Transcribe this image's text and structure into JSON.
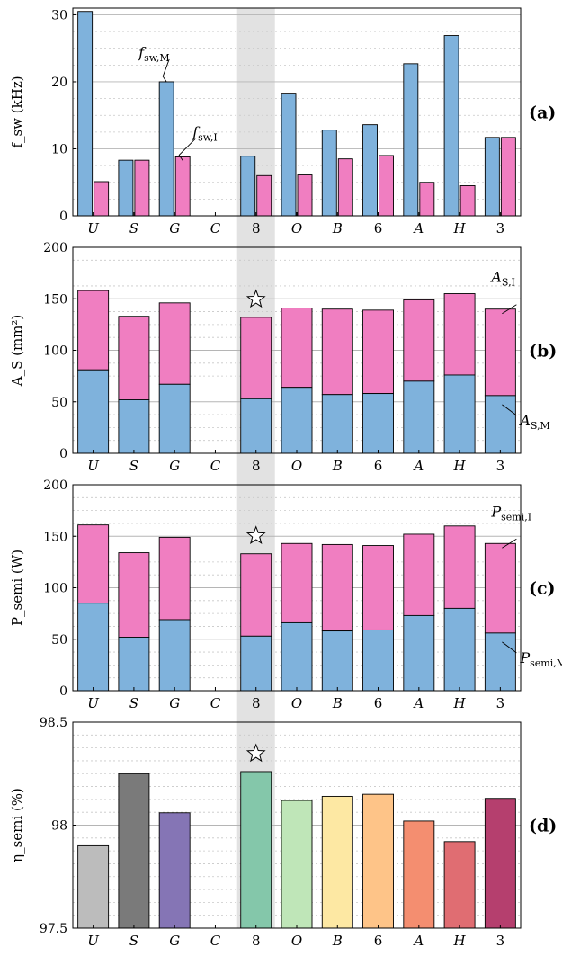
{
  "figure": {
    "categories": [
      "U",
      "S",
      "G",
      "C",
      "8",
      "O",
      "B",
      "6",
      "A",
      "H",
      "3"
    ],
    "highlight_category": "8",
    "colors": {
      "M": "#7fb2dc",
      "I": "#f07ec1",
      "highlight_band": "#cfcfcf",
      "grid_major": "#b5b5b5",
      "grid_minor": "#c8c8c8"
    }
  },
  "chart_data": [
    {
      "id": "a",
      "type": "bar",
      "grouping": "grouped",
      "panel_label": "(a)",
      "ylabel": "f_sw (kHz)",
      "ylim": [
        0,
        31
      ],
      "yticks": [
        0,
        10,
        20,
        30
      ],
      "minor_step": 2.5,
      "categories": [
        "U",
        "S",
        "G",
        "C",
        "8",
        "O",
        "B",
        "6",
        "A",
        "H",
        "3"
      ],
      "series": [
        {
          "key": "M",
          "name": "f_sw,M",
          "values": [
            30.5,
            8.3,
            20.0,
            null,
            8.9,
            18.3,
            12.8,
            13.6,
            22.7,
            26.9,
            11.7
          ]
        },
        {
          "key": "I",
          "name": "f_sw,I",
          "values": [
            5.1,
            8.3,
            8.8,
            null,
            6.0,
            6.1,
            8.5,
            9.0,
            5.0,
            4.5,
            11.7
          ]
        }
      ],
      "annotations": [
        {
          "base": "f",
          "sub": "sw,M",
          "series": "M",
          "category": "G"
        },
        {
          "base": "f",
          "sub": "sw,I",
          "series": "I",
          "category": "G"
        }
      ]
    },
    {
      "id": "b",
      "type": "bar",
      "grouping": "stacked",
      "panel_label": "(b)",
      "ylabel": "A_S (mm²)",
      "ylim": [
        0,
        200
      ],
      "yticks": [
        0,
        50,
        100,
        150,
        200
      ],
      "minor_step": 12.5,
      "categories": [
        "U",
        "S",
        "G",
        "C",
        "8",
        "O",
        "B",
        "6",
        "A",
        "H",
        "3"
      ],
      "series": [
        {
          "key": "M",
          "name": "A_S,M",
          "values": [
            81,
            52,
            67,
            null,
            53,
            64,
            57,
            58,
            70,
            76,
            56
          ]
        },
        {
          "key": "I",
          "name": "A_S,I",
          "values": [
            77,
            81,
            79,
            null,
            79,
            77,
            83,
            81,
            79,
            79,
            84
          ]
        }
      ],
      "star_category": "8",
      "annotations": [
        {
          "base": "A",
          "sub": "S,I",
          "series": "I",
          "category": "3"
        },
        {
          "base": "A",
          "sub": "S,M",
          "series": "M",
          "category": "3"
        }
      ]
    },
    {
      "id": "c",
      "type": "bar",
      "grouping": "stacked",
      "panel_label": "(c)",
      "ylabel": "P_semi (W)",
      "ylim": [
        0,
        200
      ],
      "yticks": [
        0,
        50,
        100,
        150,
        200
      ],
      "minor_step": 12.5,
      "categories": [
        "U",
        "S",
        "G",
        "C",
        "8",
        "O",
        "B",
        "6",
        "A",
        "H",
        "3"
      ],
      "series": [
        {
          "key": "M",
          "name": "P_semi,M",
          "values": [
            85,
            52,
            69,
            null,
            53,
            66,
            58,
            59,
            73,
            80,
            56
          ]
        },
        {
          "key": "I",
          "name": "P_semi,I",
          "values": [
            76,
            82,
            80,
            null,
            80,
            77,
            84,
            82,
            79,
            80,
            87
          ]
        }
      ],
      "star_category": "8",
      "annotations": [
        {
          "base": "P",
          "sub": "semi,I",
          "series": "I",
          "category": "3"
        },
        {
          "base": "P",
          "sub": "semi,M",
          "series": "M",
          "category": "3"
        }
      ]
    },
    {
      "id": "d",
      "type": "bar",
      "grouping": "single",
      "panel_label": "(d)",
      "ylabel": "η_semi (%)",
      "ylim": [
        97.5,
        98.5
      ],
      "yticks": [
        97.5,
        98,
        98.5
      ],
      "ytick_labels": [
        "97.5",
        "98",
        "98.5"
      ],
      "minor_step": 0.0625,
      "categories": [
        "U",
        "S",
        "G",
        "C",
        "8",
        "O",
        "B",
        "6",
        "A",
        "H",
        "3"
      ],
      "values": [
        97.9,
        98.25,
        98.06,
        null,
        98.26,
        98.12,
        98.14,
        98.15,
        98.02,
        97.92,
        98.13
      ],
      "bar_colors": [
        "#bcbcbc",
        "#7a7a7a",
        "#8575b5",
        null,
        "#84c7aa",
        "#bfe6b8",
        "#fde8a3",
        "#fec488",
        "#f48e70",
        "#e06d72",
        "#b53f6e"
      ],
      "star_category": "8"
    }
  ]
}
